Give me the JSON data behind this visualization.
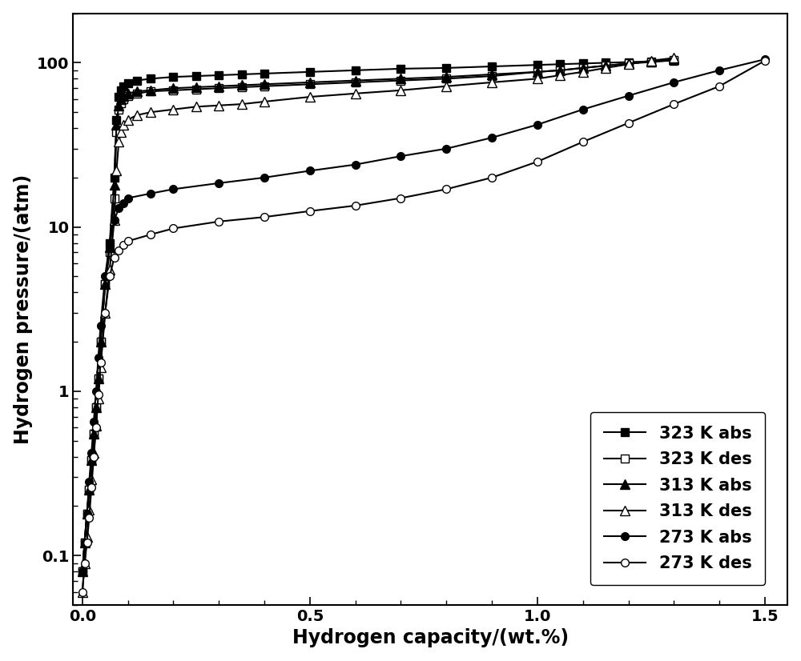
{
  "title": "",
  "xlabel": "Hydrogen capacity/(wt.%)",
  "ylabel": "Hydrogen pressure/(atm)",
  "xlim": [
    -0.02,
    1.55
  ],
  "ylim_log": [
    0.05,
    200
  ],
  "background_color": "#ffffff",
  "line_color": "#000000",
  "series": [
    {
      "label": "323 K abs",
      "marker": "s",
      "filled": true,
      "x": [
        0.0,
        0.005,
        0.01,
        0.015,
        0.02,
        0.025,
        0.03,
        0.035,
        0.04,
        0.05,
        0.06,
        0.07,
        0.075,
        0.08,
        0.085,
        0.09,
        0.1,
        0.12,
        0.15,
        0.2,
        0.25,
        0.3,
        0.35,
        0.4,
        0.5,
        0.6,
        0.7,
        0.8,
        0.9,
        1.0,
        1.05,
        1.1,
        1.15,
        1.2,
        1.25,
        1.3
      ],
      "y": [
        0.08,
        0.12,
        0.18,
        0.25,
        0.38,
        0.55,
        0.8,
        1.2,
        2.0,
        4.5,
        8.0,
        20,
        45,
        62,
        68,
        72,
        75,
        78,
        80,
        82,
        83,
        84,
        85,
        86,
        88,
        90,
        92,
        93,
        95,
        97,
        98,
        99,
        100,
        101,
        102,
        103
      ]
    },
    {
      "label": "323 K des",
      "marker": "s",
      "filled": false,
      "x": [
        0.0,
        0.005,
        0.01,
        0.015,
        0.02,
        0.025,
        0.03,
        0.035,
        0.04,
        0.05,
        0.06,
        0.07,
        0.075,
        0.08,
        0.085,
        0.09,
        0.1,
        0.12,
        0.15,
        0.2,
        0.25,
        0.3,
        0.35,
        0.4,
        0.5,
        0.6,
        0.7,
        0.8,
        0.9,
        1.0,
        1.05,
        1.1,
        1.15,
        1.2,
        1.25,
        1.3
      ],
      "y": [
        0.08,
        0.12,
        0.18,
        0.25,
        0.38,
        0.55,
        0.8,
        1.2,
        2.0,
        4.5,
        7.0,
        15,
        38,
        52,
        57,
        60,
        63,
        65,
        67,
        68,
        69,
        70,
        71,
        72,
        74,
        76,
        78,
        80,
        83,
        88,
        90,
        93,
        96,
        99,
        101,
        104
      ]
    },
    {
      "label": "313 K abs",
      "marker": "^",
      "filled": true,
      "x": [
        0.0,
        0.005,
        0.01,
        0.015,
        0.02,
        0.025,
        0.03,
        0.035,
        0.04,
        0.05,
        0.06,
        0.07,
        0.075,
        0.08,
        0.085,
        0.09,
        0.1,
        0.12,
        0.15,
        0.2,
        0.25,
        0.3,
        0.35,
        0.4,
        0.5,
        0.6,
        0.7,
        0.8,
        0.9,
        1.0,
        1.05,
        1.1,
        1.15,
        1.2,
        1.25,
        1.3
      ],
      "y": [
        0.08,
        0.12,
        0.18,
        0.25,
        0.38,
        0.55,
        0.8,
        1.2,
        2.0,
        4.5,
        7.5,
        18,
        42,
        55,
        60,
        63,
        65,
        67,
        68,
        70,
        71,
        72,
        73,
        74,
        76,
        78,
        80,
        82,
        85,
        88,
        90,
        93,
        96,
        99,
        102,
        105
      ]
    },
    {
      "label": "313 K des",
      "marker": "^",
      "filled": false,
      "x": [
        0.0,
        0.005,
        0.01,
        0.015,
        0.02,
        0.025,
        0.03,
        0.035,
        0.04,
        0.05,
        0.06,
        0.07,
        0.075,
        0.08,
        0.085,
        0.09,
        0.1,
        0.12,
        0.15,
        0.2,
        0.25,
        0.3,
        0.35,
        0.4,
        0.5,
        0.6,
        0.7,
        0.8,
        0.9,
        1.0,
        1.05,
        1.1,
        1.15,
        1.2,
        1.25,
        1.3
      ],
      "y": [
        0.06,
        0.09,
        0.13,
        0.19,
        0.29,
        0.42,
        0.62,
        0.9,
        1.4,
        3.0,
        5.5,
        11,
        22,
        33,
        38,
        42,
        45,
        48,
        50,
        52,
        54,
        55,
        56,
        58,
        62,
        65,
        68,
        72,
        76,
        80,
        84,
        88,
        93,
        98,
        103,
        107
      ]
    },
    {
      "label": "273 K abs",
      "marker": "o",
      "filled": true,
      "x": [
        0.0,
        0.005,
        0.01,
        0.015,
        0.02,
        0.025,
        0.03,
        0.035,
        0.04,
        0.05,
        0.06,
        0.07,
        0.08,
        0.09,
        0.1,
        0.15,
        0.2,
        0.3,
        0.4,
        0.5,
        0.6,
        0.7,
        0.8,
        0.9,
        1.0,
        1.1,
        1.2,
        1.3,
        1.4,
        1.5
      ],
      "y": [
        0.08,
        0.12,
        0.18,
        0.28,
        0.42,
        0.65,
        1.0,
        1.6,
        2.5,
        5.0,
        8.0,
        11,
        13,
        14,
        15,
        16,
        17,
        18.5,
        20,
        22,
        24,
        27,
        30,
        35,
        42,
        52,
        63,
        76,
        90,
        105
      ]
    },
    {
      "label": "273 K des",
      "marker": "o",
      "filled": false,
      "x": [
        0.0,
        0.005,
        0.01,
        0.015,
        0.02,
        0.025,
        0.03,
        0.035,
        0.04,
        0.05,
        0.06,
        0.07,
        0.08,
        0.09,
        0.1,
        0.15,
        0.2,
        0.3,
        0.4,
        0.5,
        0.6,
        0.7,
        0.8,
        0.9,
        1.0,
        1.1,
        1.2,
        1.3,
        1.4,
        1.5
      ],
      "y": [
        0.06,
        0.09,
        0.12,
        0.17,
        0.26,
        0.4,
        0.6,
        0.95,
        1.5,
        3.0,
        5.0,
        6.5,
        7.2,
        7.8,
        8.2,
        9.0,
        9.8,
        10.8,
        11.5,
        12.5,
        13.5,
        15,
        17,
        20,
        25,
        33,
        43,
        56,
        72,
        103
      ]
    }
  ],
  "legend_fontsize": 15,
  "axis_label_fontsize": 17,
  "tick_fontsize": 14,
  "marker_size": 7,
  "line_width": 1.5
}
